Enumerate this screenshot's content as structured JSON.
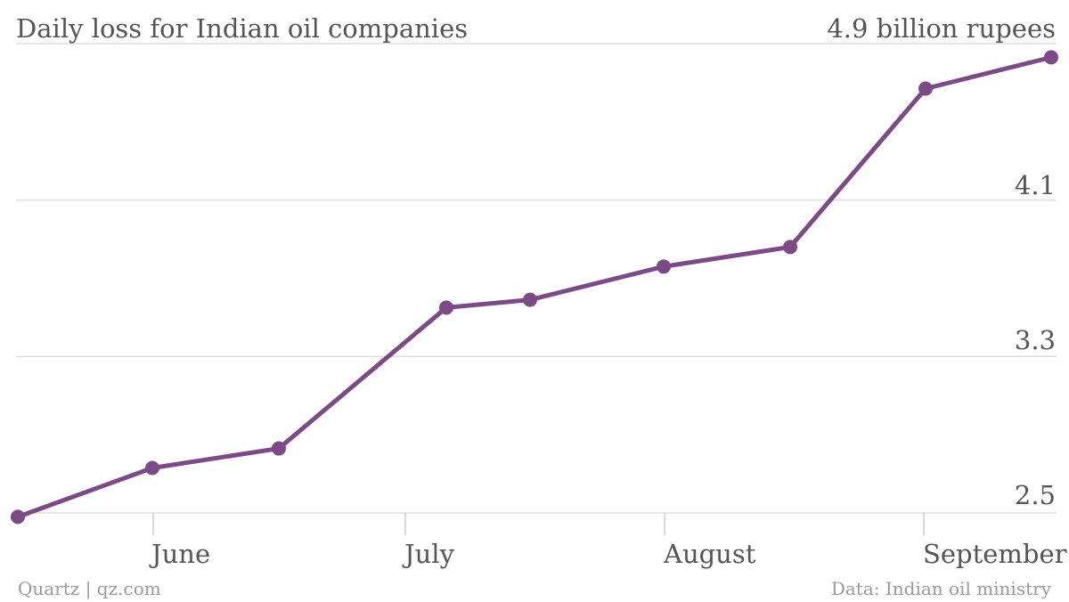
{
  "chart_data": {
    "type": "line",
    "title": "Daily loss for Indian oil companies",
    "ylabel": "4.9 billion rupees",
    "ylim": [
      2.5,
      4.9
    ],
    "y_ticks": [
      "2.5",
      "3.3",
      "4.1"
    ],
    "x_tick_labels": [
      "June",
      "July",
      "August",
      "September"
    ],
    "series": [
      {
        "color": "#7b4b86",
        "values": [
          2.48,
          2.73,
          2.83,
          3.55,
          3.59,
          3.76,
          3.86,
          4.67,
          4.83
        ]
      }
    ],
    "grid": true,
    "legend": "none"
  },
  "footer": {
    "source_left": "Quartz | qz.com",
    "source_right": "Data: Indian oil ministry"
  }
}
